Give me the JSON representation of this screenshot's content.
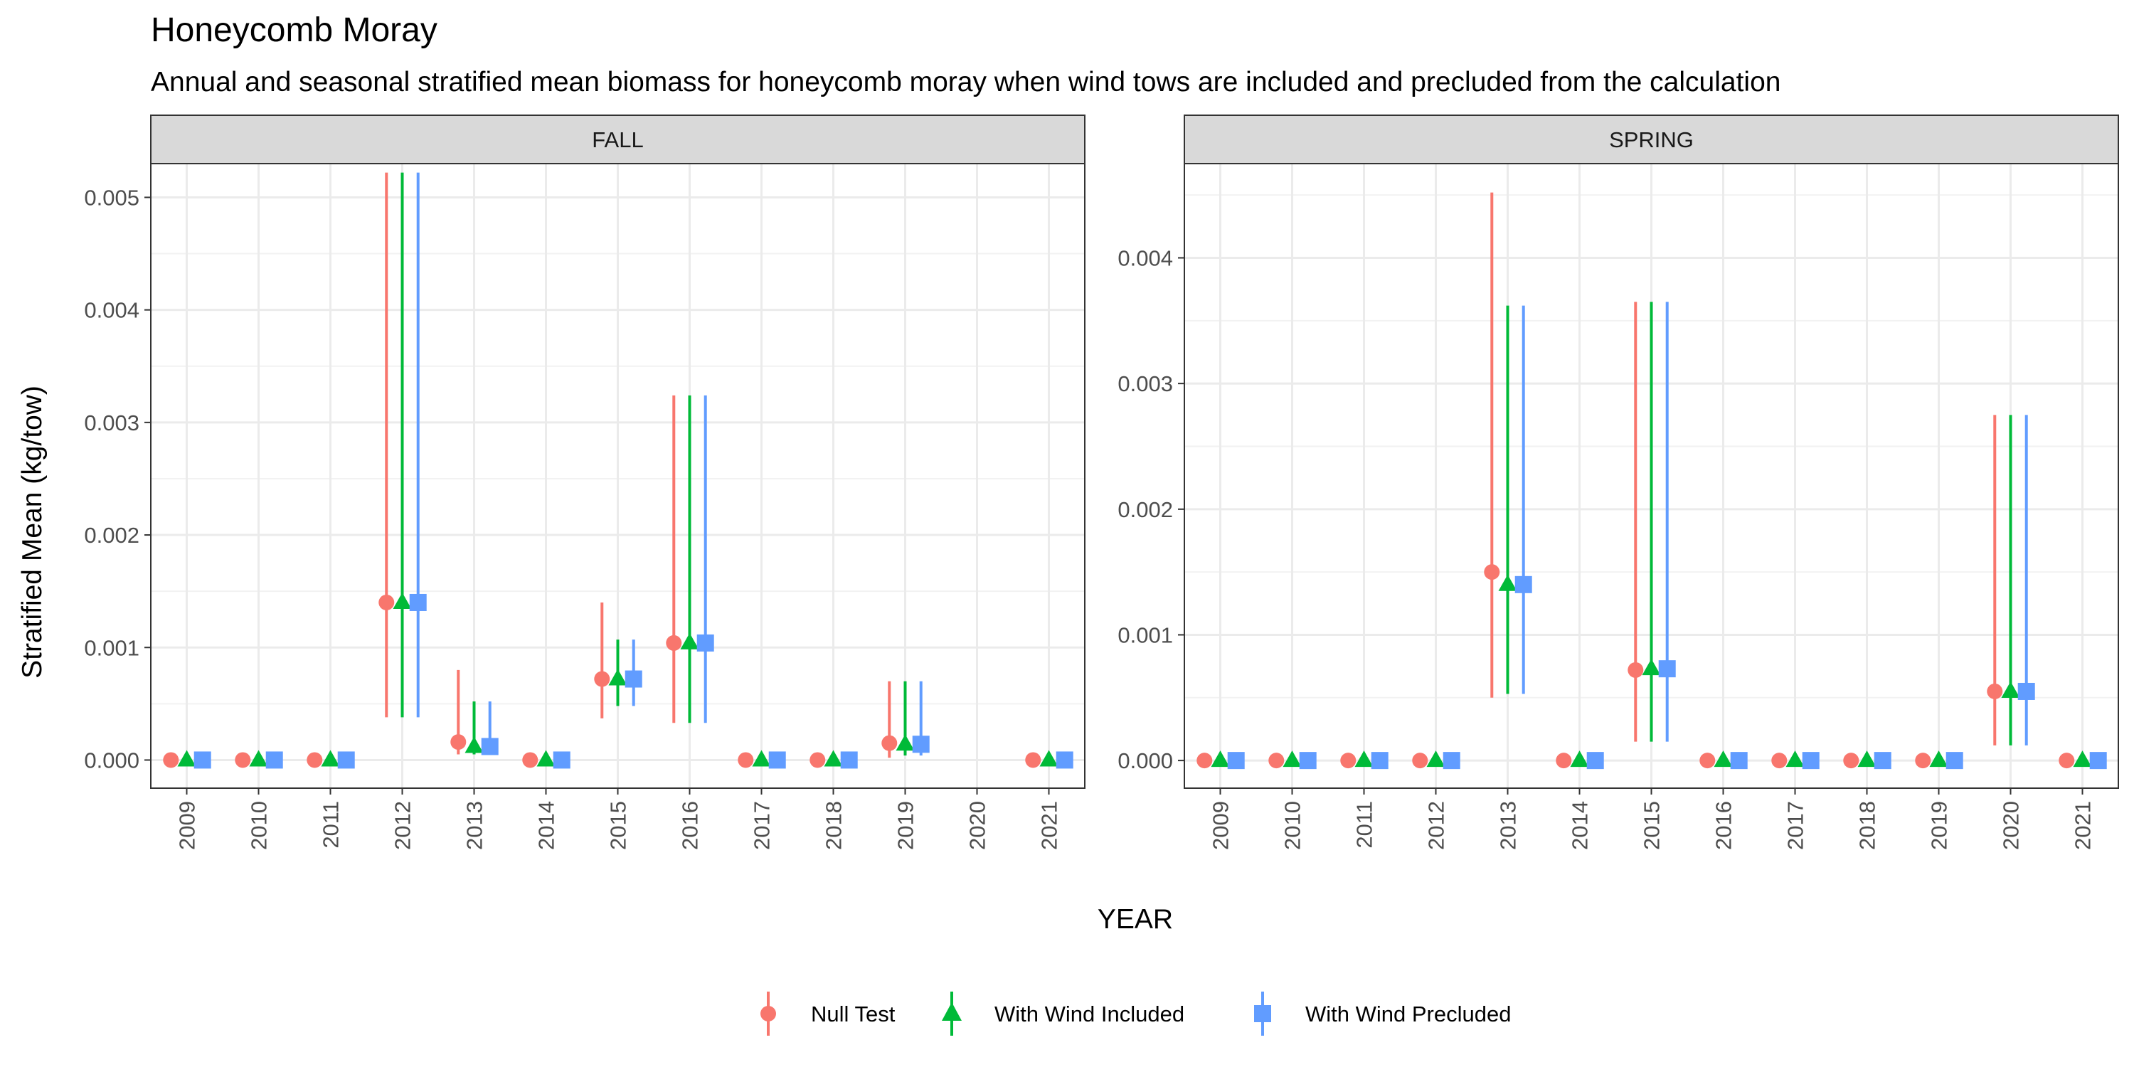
{
  "title": "Honeycomb Moray",
  "subtitle": "Annual and seasonal stratified mean biomass for honeycomb moray when wind tows are included and precluded from the calculation",
  "xlabel": "YEAR",
  "ylabel": "Stratified Mean (kg/tow)",
  "legend": {
    "placement": "bottom",
    "items": [
      {
        "label": "Null Test",
        "color": "#F8766D",
        "shape": "circle"
      },
      {
        "label": "With Wind Included",
        "color": "#00BA38",
        "shape": "triangle"
      },
      {
        "label": "With Wind Precluded",
        "color": "#619CFF",
        "shape": "square"
      }
    ]
  },
  "chart_data": [
    {
      "type": "scatter",
      "panel": "FALL",
      "categories": [
        "2009",
        "2010",
        "2011",
        "2012",
        "2013",
        "2014",
        "2015",
        "2016",
        "2017",
        "2018",
        "2019",
        "2020",
        "2021"
      ],
      "ylim": [
        -0.00025,
        0.0053
      ],
      "yticks": [
        0,
        0.001,
        0.002,
        0.003,
        0.004,
        0.005
      ],
      "ytick_labels": [
        "0.000",
        "0.001",
        "0.002",
        "0.003",
        "0.004",
        "0.005"
      ],
      "grid": true,
      "series": [
        {
          "name": "Null Test",
          "values": [
            0,
            0,
            0,
            0.0014,
            0.00016,
            0,
            0.00072,
            0.00104,
            0,
            0,
            0.00015,
            null,
            0
          ],
          "lower": [
            null,
            null,
            null,
            0.00038,
            5e-05,
            null,
            0.00037,
            0.00033,
            null,
            null,
            2e-05,
            null,
            null
          ],
          "upper": [
            null,
            null,
            null,
            0.00522,
            0.0008,
            null,
            0.0014,
            0.00324,
            null,
            null,
            0.0007,
            null,
            null
          ]
        },
        {
          "name": "With Wind Included",
          "values": [
            0,
            0,
            0,
            0.0014,
            0.00012,
            0,
            0.00072,
            0.00104,
            0,
            0,
            0.00014,
            null,
            0
          ],
          "lower": [
            null,
            null,
            null,
            0.00038,
            5e-05,
            null,
            0.00048,
            0.00033,
            null,
            null,
            4e-05,
            null,
            null
          ],
          "upper": [
            null,
            null,
            null,
            0.00522,
            0.00052,
            null,
            0.00107,
            0.00324,
            null,
            null,
            0.0007,
            null,
            null
          ]
        },
        {
          "name": "With Wind Precluded",
          "values": [
            0,
            0,
            0,
            0.0014,
            0.00012,
            0,
            0.00072,
            0.00104,
            0,
            0,
            0.00014,
            null,
            0
          ],
          "lower": [
            null,
            null,
            null,
            0.00038,
            5e-05,
            null,
            0.00048,
            0.00033,
            null,
            null,
            4e-05,
            null,
            null
          ],
          "upper": [
            null,
            null,
            null,
            0.00522,
            0.00052,
            null,
            0.00107,
            0.00324,
            null,
            null,
            0.0007,
            null,
            null
          ]
        }
      ]
    },
    {
      "type": "scatter",
      "panel": "SPRING",
      "categories": [
        "2009",
        "2010",
        "2011",
        "2012",
        "2013",
        "2014",
        "2015",
        "2016",
        "2017",
        "2018",
        "2019",
        "2020",
        "2021"
      ],
      "ylim": [
        -0.00022,
        0.00475
      ],
      "yticks": [
        0,
        0.001,
        0.002,
        0.003,
        0.004
      ],
      "ytick_labels": [
        "0.000",
        "0.001",
        "0.002",
        "0.003",
        "0.004"
      ],
      "grid": true,
      "series": [
        {
          "name": "Null Test",
          "values": [
            0,
            0,
            0,
            0,
            0.0015,
            0,
            0.00072,
            0,
            0,
            0,
            0,
            0.00055,
            0
          ],
          "lower": [
            null,
            null,
            null,
            null,
            0.0005,
            null,
            0.00015,
            null,
            null,
            null,
            null,
            0.00012,
            null
          ],
          "upper": [
            null,
            null,
            null,
            null,
            0.00452,
            null,
            0.00365,
            null,
            null,
            null,
            null,
            0.00275,
            null
          ]
        },
        {
          "name": "With Wind Included",
          "values": [
            0,
            0,
            0,
            0,
            0.0014,
            0,
            0.00073,
            0,
            0,
            0,
            0,
            0.00055,
            0
          ],
          "lower": [
            null,
            null,
            null,
            null,
            0.00053,
            null,
            0.00015,
            null,
            null,
            null,
            null,
            0.00012,
            null
          ],
          "upper": [
            null,
            null,
            null,
            null,
            0.00362,
            null,
            0.00365,
            null,
            null,
            null,
            null,
            0.00275,
            null
          ]
        },
        {
          "name": "With Wind Precluded",
          "values": [
            0,
            0,
            0,
            0,
            0.0014,
            0,
            0.00073,
            0,
            0,
            0,
            0,
            0.00055,
            0
          ],
          "lower": [
            null,
            null,
            null,
            null,
            0.00053,
            null,
            0.00015,
            null,
            null,
            null,
            null,
            0.00012,
            null
          ],
          "upper": [
            null,
            null,
            null,
            null,
            0.00362,
            null,
            0.00365,
            null,
            null,
            null,
            null,
            0.00275,
            null
          ]
        }
      ]
    }
  ]
}
